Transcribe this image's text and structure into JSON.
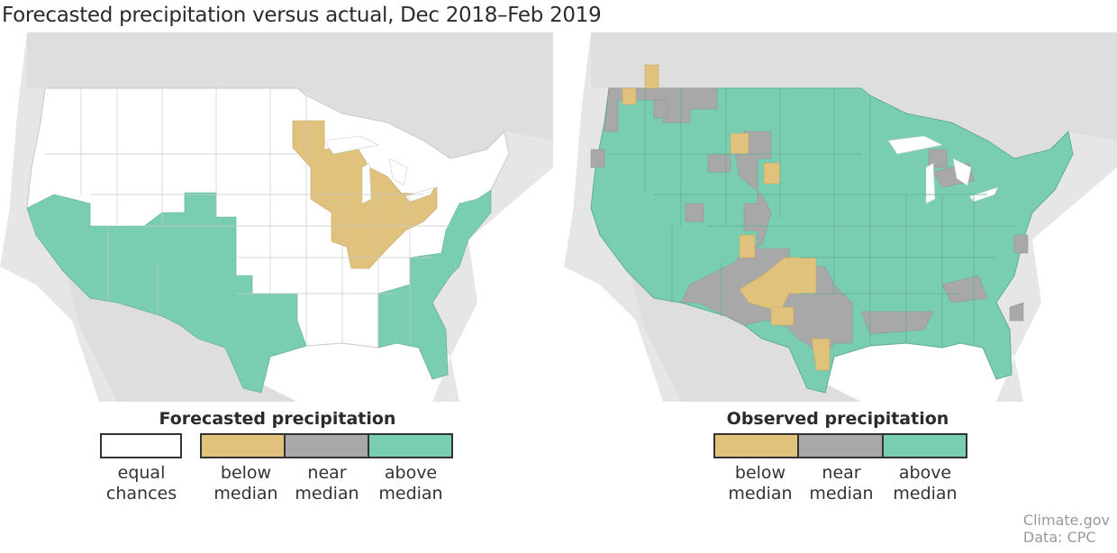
{
  "title": "Forecasted precipitation versus actual, Dec 2018–Feb 2019",
  "colors": {
    "equal_chances": "#ffffff",
    "below_median": "#e0c27c",
    "near_median": "#a8a8a8",
    "above_median": "#79cdb0",
    "ocean": "#ffffff",
    "surrounding_land": "#dedede",
    "lakes": "#ffffff",
    "background": "#e6e6e6"
  },
  "forecast_map": {
    "name": "Forecasted precipitation",
    "categories_present": [
      "equal chances",
      "below median",
      "above median"
    ]
  },
  "observed_map": {
    "name": "Observed precipitation",
    "categories_present": [
      "below median",
      "near median",
      "above median"
    ]
  },
  "legend_forecast": {
    "title": "Forecasted precipitation",
    "items": [
      {
        "line1": "equal",
        "line2": "chances",
        "color": "#ffffff"
      },
      {
        "line1": "below",
        "line2": "median",
        "color": "#e0c27c"
      },
      {
        "line1": "near",
        "line2": "median",
        "color": "#a8a8a8"
      },
      {
        "line1": "above",
        "line2": "median",
        "color": "#79cdb0"
      }
    ]
  },
  "legend_observed": {
    "title": "Observed precipitation",
    "items": [
      {
        "line1": "below",
        "line2": "median",
        "color": "#e0c27c"
      },
      {
        "line1": "near",
        "line2": "median",
        "color": "#a8a8a8"
      },
      {
        "line1": "above",
        "line2": "median",
        "color": "#79cdb0"
      }
    ]
  },
  "credit": {
    "line1": "Climate.gov",
    "line2": "Data: CPC"
  }
}
